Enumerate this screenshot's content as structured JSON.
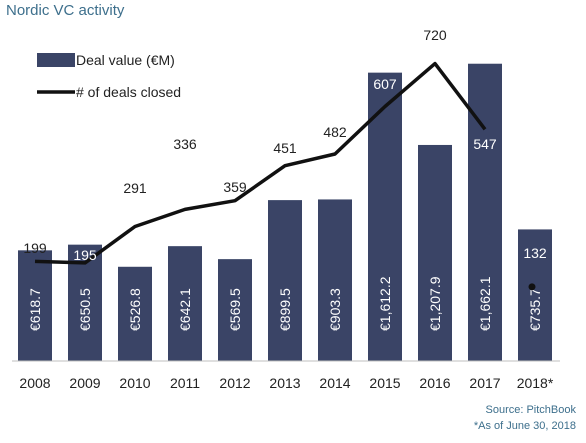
{
  "chart_data": {
    "type": "bar",
    "title": "Nordic VC activity",
    "categories": [
      "2008",
      "2009",
      "2010",
      "2011",
      "2012",
      "2013",
      "2014",
      "2015",
      "2016",
      "2017",
      "2018*"
    ],
    "series": [
      {
        "name": "Deal value  (€M)",
        "kind": "bar",
        "values": [
          618.7,
          650.5,
          526.8,
          642.1,
          569.5,
          899.5,
          903.3,
          1612.2,
          1207.9,
          1662.1,
          735.7
        ],
        "labels": [
          "€618.7",
          "€650.5",
          "€526.8",
          "€642.1",
          "€569.5",
          "€899.5",
          "€903.3",
          "€1,612.2",
          "€1,207.9",
          "€1,662.1",
          "€735.7"
        ],
        "color": "#3a4466"
      },
      {
        "name": "# of deals closed",
        "kind": "line",
        "values": [
          199,
          195,
          291,
          336,
          359,
          451,
          482,
          607,
          720,
          547,
          132
        ],
        "labels": [
          "199",
          "195",
          "291",
          "336",
          "359",
          "451",
          "482",
          "607",
          "720",
          "547",
          "132"
        ],
        "color": "#111111"
      }
    ],
    "legend_position": "top-left",
    "bar_axis_range": [
      0,
      1750
    ],
    "line_axis_range": [
      150,
      740
    ],
    "grid": false
  },
  "source": "Source: PitchBook",
  "note": "*As of June 30, 2018"
}
